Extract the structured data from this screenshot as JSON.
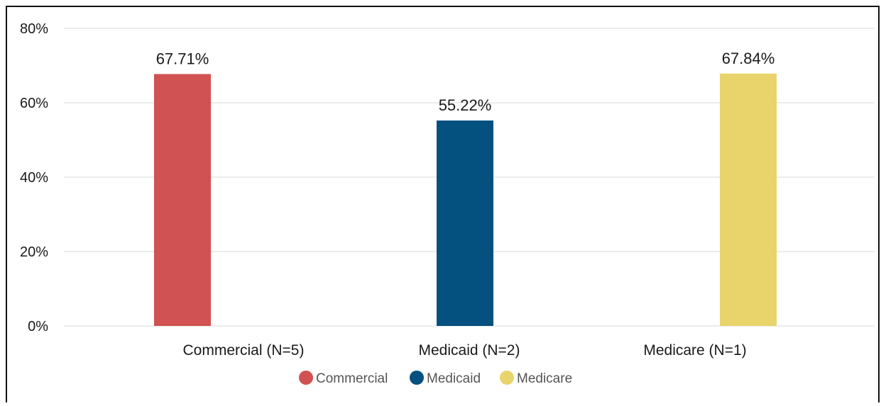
{
  "chart_data": {
    "type": "bar",
    "categories": [
      "Commercial (N=5)",
      "Medicaid (N=2)",
      "Medicare (N=1)"
    ],
    "values": [
      67.71,
      55.22,
      67.84
    ],
    "value_labels": [
      "67.71%",
      "55.22%",
      "67.84%"
    ],
    "colors": [
      "#d05252",
      "#04507e",
      "#e8d46a"
    ],
    "ylim": [
      0,
      80
    ],
    "yticks": [
      0,
      20,
      40,
      60,
      80
    ],
    "ytick_labels": [
      "0%",
      "20%",
      "40%",
      "60%",
      "80%"
    ],
    "grid": true,
    "legend": {
      "position": "bottom",
      "entries": [
        "Commercial",
        "Medicaid",
        "Medicare"
      ]
    }
  }
}
